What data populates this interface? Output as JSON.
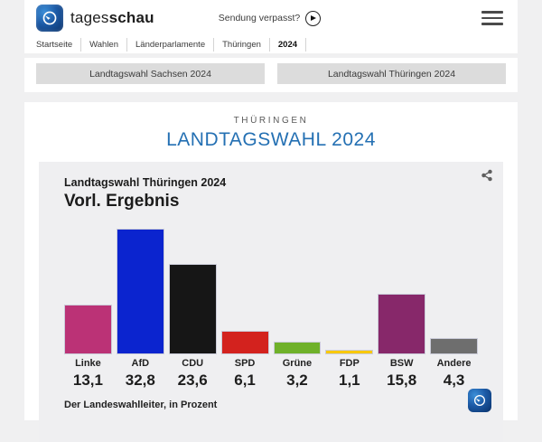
{
  "header": {
    "brand_regular": "tages",
    "brand_bold": "schau",
    "watch_label": "Sendung verpasst?"
  },
  "breadcrumb": {
    "items": [
      "Startseite",
      "Wahlen",
      "Länderparlamente",
      "Thüringen",
      "2024"
    ],
    "current": "2024"
  },
  "nav_buttons": [
    {
      "label": "Landtagswahl Sachsen 2024"
    },
    {
      "label": "Landtagswahl Thüringen 2024"
    }
  ],
  "page": {
    "kicker": "THÜRINGEN",
    "title": "LANDTAGSWAHL 2024",
    "title_color": "#2470b3"
  },
  "chart_data": {
    "type": "bar",
    "title": "Landtagswahl Thüringen 2024",
    "subtitle": "Vorl. Ergebnis",
    "source": "Der Landeswahlleiter, in Prozent",
    "unit": "Prozent",
    "ylim": [
      0,
      35
    ],
    "grid": false,
    "categories": [
      "Linke",
      "AfD",
      "CDU",
      "SPD",
      "Grüne",
      "FDP",
      "BSW",
      "Andere"
    ],
    "values": [
      13.1,
      32.8,
      23.6,
      6.1,
      3.2,
      1.1,
      15.8,
      4.3
    ],
    "value_labels": [
      "13,1",
      "32,8",
      "23,6",
      "6,1",
      "3,2",
      "1,1",
      "15,8",
      "4,3"
    ],
    "colors": [
      "#bb3276",
      "#0b24cf",
      "#161616",
      "#d3221e",
      "#6fb12a",
      "#f8c800",
      "#87286a",
      "#6e6e6e"
    ]
  },
  "icons": {
    "logo": "tagesschau-globe",
    "play": "play-circle",
    "menu": "hamburger",
    "share": "share-nodes"
  }
}
